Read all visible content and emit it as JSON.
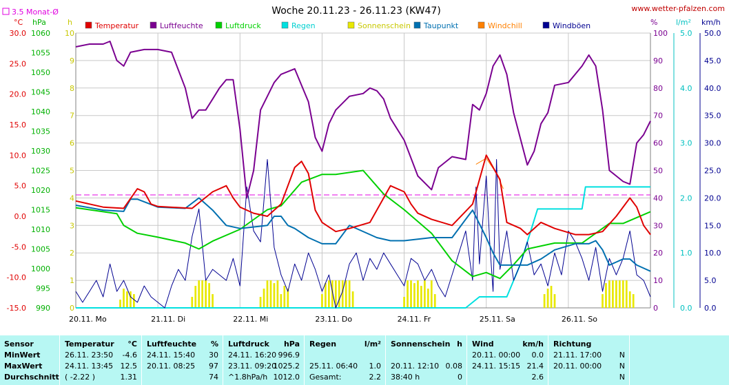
{
  "site_url": "www.wetter-pfalzen.com",
  "colors": {
    "temperature": "#e00000",
    "humidity": "#7a0090",
    "pressure": "#00d000",
    "rain": "#00e0e0",
    "sunshine": "#e8e800",
    "dewpoint": "#0070b0",
    "windchill": "#ff8000",
    "gusts": "#000090",
    "monthly_avg": "#e000e0",
    "grid": "#c8c8c8"
  },
  "chart_data": {
    "type": "line",
    "title": "Woche 20.11.23 - 26.11.23 (KW47)",
    "x_range_hours": [
      0,
      168
    ],
    "x_tick_labels": [
      "20.11. Mo",
      "21.11. Di",
      "22.11. Mi",
      "23.11. Do",
      "24.11. Fr",
      "25.11. Sa",
      "26.11. So"
    ],
    "legend": [
      "Temperatur",
      "Luftfeuchte",
      "Luftdruck",
      "Regen",
      "Sonnenschein",
      "Taupunkt",
      "Windchill",
      "Windböen"
    ],
    "monthly_avg_label": "3.5 Monat-Ø",
    "monthly_avg_value": 3.5,
    "axes": {
      "temperature": {
        "unit": "°C",
        "range": [
          -15,
          30
        ],
        "ticks": [
          "30.0",
          "25.0",
          "20.0",
          "15.0",
          "10.0",
          "5.0",
          "0.0",
          "-5.0",
          "-10.0",
          "-15.0"
        ]
      },
      "pressure": {
        "unit": "hPa",
        "range": [
          990,
          1060
        ],
        "ticks": [
          "1060",
          "1055",
          "1050",
          "1045",
          "1040",
          "1035",
          "1030",
          "1025",
          "1020",
          "1015",
          "1010",
          "1005",
          "1000",
          "995",
          "990"
        ]
      },
      "sunshine": {
        "unit": "h",
        "range": [
          0,
          10
        ],
        "ticks": [
          "10",
          "9",
          "8",
          "7",
          "6",
          "5",
          "4",
          "3",
          "2",
          "1",
          "0"
        ]
      },
      "humidity": {
        "unit": "%",
        "range": [
          0,
          100
        ],
        "ticks": [
          "100",
          "90",
          "80",
          "70",
          "60",
          "50",
          "40",
          "30",
          "20",
          "10",
          "0"
        ]
      },
      "rain": {
        "unit": "l/m²",
        "range": [
          0,
          5
        ],
        "ticks": [
          "5.0",
          "4.0",
          "3.0",
          "2.0",
          "1.0",
          "0.0"
        ]
      },
      "wind": {
        "unit": "km/h",
        "range": [
          0,
          50
        ],
        "ticks": [
          "50.0",
          "45.0",
          "40.0",
          "35.0",
          "30.0",
          "25.0",
          "20.0",
          "15.0",
          "10.0",
          "5.0",
          "0.0"
        ]
      }
    },
    "series": [
      {
        "name": "Temperatur",
        "axis": "temperature",
        "x": [
          0,
          8,
          14,
          18,
          20,
          22,
          24,
          34,
          40,
          44,
          46,
          48,
          52,
          56,
          60,
          64,
          66,
          68,
          70,
          72,
          76,
          80,
          86,
          92,
          96,
          98,
          100,
          104,
          110,
          116,
          120,
          124,
          126,
          128,
          130,
          132,
          134,
          136,
          140,
          146,
          150,
          154,
          158,
          162,
          164,
          166,
          168
        ],
        "y": [
          2.5,
          1.5,
          1.3,
          4.5,
          4.0,
          2.0,
          1.6,
          1.3,
          4.0,
          5.0,
          3.0,
          1.5,
          0.5,
          0.0,
          2.0,
          8.0,
          9.0,
          7.0,
          1.0,
          -1.0,
          -2.5,
          -2.0,
          -1.0,
          5.0,
          4.0,
          2.0,
          0.5,
          -0.5,
          -1.5,
          2.0,
          10.0,
          6.0,
          -1.0,
          -1.5,
          -2.0,
          -3.0,
          -2.0,
          -1.0,
          -2.0,
          -3.0,
          -3.0,
          -2.5,
          0.0,
          3.0,
          1.5,
          -1.5,
          -3.0
        ]
      },
      {
        "name": "Windchill",
        "axis": "temperature",
        "x": [
          117,
          120,
          123,
          125
        ],
        "y": [
          8.5,
          9.5,
          7.0,
          4.5
        ]
      },
      {
        "name": "Luftfeuchte",
        "axis": "humidity",
        "x": [
          0,
          4,
          8,
          10,
          12,
          14,
          16,
          20,
          24,
          28,
          32,
          34,
          36,
          38,
          40,
          42,
          44,
          46,
          48,
          50,
          52,
          54,
          56,
          58,
          60,
          64,
          68,
          70,
          72,
          74,
          76,
          80,
          84,
          86,
          88,
          90,
          92,
          96,
          100,
          104,
          106,
          110,
          114,
          116,
          118,
          120,
          122,
          124,
          126,
          128,
          132,
          134,
          136,
          138,
          140,
          144,
          148,
          150,
          152,
          154,
          156,
          158,
          160,
          162,
          164,
          166,
          168
        ],
        "y": [
          95,
          96,
          96,
          97,
          90,
          88,
          93,
          94,
          94,
          93,
          80,
          69,
          72,
          72,
          76,
          80,
          83,
          83,
          65,
          40,
          50,
          72,
          77,
          82,
          85,
          87,
          75,
          62,
          57,
          67,
          72,
          77,
          78,
          80,
          79,
          76,
          69,
          61,
          48,
          43,
          51,
          55,
          54,
          74,
          72,
          78,
          88,
          92,
          85,
          71,
          52,
          57,
          67,
          71,
          81,
          82,
          88,
          92,
          88,
          72,
          50,
          48,
          46,
          45,
          60,
          63,
          68
        ]
      },
      {
        "name": "Luftdruck",
        "axis": "pressure",
        "x": [
          0,
          8,
          12,
          14,
          18,
          24,
          32,
          36,
          40,
          48,
          56,
          60,
          66,
          72,
          76,
          84,
          90,
          96,
          104,
          110,
          116,
          120,
          124,
          128,
          132,
          140,
          148,
          152,
          156,
          160,
          164,
          168
        ],
        "y": [
          1015.5,
          1014.5,
          1014.0,
          1011.0,
          1009.0,
          1008.0,
          1006.5,
          1005.0,
          1007.0,
          1010.0,
          1015.0,
          1016.0,
          1022.0,
          1024.0,
          1024.0,
          1025.0,
          1019.0,
          1015.0,
          1009.0,
          1002.0,
          998.0,
          999.0,
          997.5,
          1001.0,
          1005.0,
          1006.5,
          1006.5,
          1009.0,
          1011.5,
          1011.5,
          1013.0,
          1014.5
        ]
      },
      {
        "name": "Taupunkt",
        "axis": "temperature",
        "x": [
          0,
          8,
          14,
          16,
          18,
          24,
          32,
          36,
          40,
          44,
          48,
          56,
          58,
          60,
          62,
          64,
          68,
          72,
          76,
          80,
          88,
          92,
          96,
          104,
          110,
          114,
          116,
          120,
          122,
          124,
          126,
          128,
          132,
          136,
          140,
          146,
          150,
          152,
          154,
          156,
          158,
          160,
          162,
          164,
          166,
          168
        ],
        "y": [
          1.8,
          1.0,
          0.8,
          2.8,
          2.8,
          1.5,
          1.3,
          3.0,
          1.0,
          -1.5,
          -2.0,
          -1.5,
          0.0,
          0.0,
          -1.5,
          -2.0,
          -3.5,
          -4.5,
          -4.5,
          -1.5,
          -3.5,
          -4.0,
          -4.0,
          -3.5,
          -3.5,
          -0.5,
          1.0,
          -3.5,
          -6.0,
          -8.0,
          -8.0,
          -8.0,
          -8.0,
          -7.0,
          -5.5,
          -4.5,
          -4.5,
          -4.0,
          -5.5,
          -8.0,
          -7.5,
          -7.0,
          -7.0,
          -8.0,
          -8.5,
          -9.0
        ]
      },
      {
        "name": "Regen",
        "axis": "rain",
        "x": [
          0,
          114,
          118,
          120,
          121,
          126,
          130,
          135,
          136,
          137,
          148,
          149,
          168
        ],
        "y": [
          0,
          0,
          0.2,
          0.2,
          0.2,
          0.2,
          0.8,
          1.8,
          1.8,
          1.8,
          1.8,
          2.2,
          2.2
        ]
      },
      {
        "name": "Windböen",
        "axis": "wind",
        "x": [
          0,
          2,
          4,
          6,
          8,
          10,
          12,
          14,
          16,
          18,
          20,
          22,
          24,
          26,
          28,
          30,
          32,
          34,
          36,
          38,
          40,
          42,
          44,
          46,
          48,
          50,
          52,
          54,
          56,
          58,
          60,
          62,
          64,
          66,
          68,
          70,
          72,
          74,
          76,
          78,
          80,
          82,
          84,
          86,
          88,
          90,
          92,
          94,
          96,
          98,
          100,
          102,
          104,
          106,
          108,
          110,
          112,
          114,
          116,
          117,
          118,
          120,
          121,
          122,
          123,
          124,
          126,
          128,
          130,
          132,
          134,
          136,
          138,
          140,
          142,
          144,
          146,
          148,
          150,
          152,
          154,
          156,
          158,
          160,
          162,
          164,
          166,
          168
        ],
        "y": [
          3,
          1,
          3,
          5,
          2,
          8,
          3,
          5,
          2,
          1,
          4,
          2,
          1,
          0,
          4,
          7,
          5,
          13,
          18,
          5,
          7,
          6,
          5,
          9,
          4,
          22,
          14,
          12,
          27,
          11,
          6,
          3,
          8,
          5,
          10,
          7,
          3,
          6,
          0,
          3,
          8,
          10,
          5,
          9,
          7,
          10,
          8,
          6,
          4,
          9,
          8,
          5,
          7,
          4,
          2,
          6,
          10,
          14,
          5,
          22,
          8,
          24,
          12,
          3,
          27,
          7,
          14,
          5,
          8,
          12,
          6,
          8,
          4,
          10,
          6,
          14,
          12,
          9,
          5,
          11,
          3,
          9,
          6,
          9,
          14,
          6,
          5,
          2
        ]
      },
      {
        "name": "Sonnenschein",
        "axis": "sunshine",
        "type": "bar",
        "x": [
          13,
          14,
          15,
          16,
          17,
          34,
          35,
          36,
          37,
          38,
          39,
          40,
          54,
          55,
          56,
          57,
          58,
          59,
          60,
          61,
          62,
          72,
          73,
          74,
          75,
          76,
          77,
          78,
          79,
          80,
          81,
          96,
          97,
          98,
          99,
          100,
          101,
          102,
          103,
          104,
          105,
          137,
          138,
          139,
          140,
          154,
          155,
          156,
          157,
          158,
          159,
          160,
          161,
          162,
          163
        ],
        "y": [
          0.3,
          0.7,
          0.6,
          0.6,
          0.5,
          0.4,
          0.8,
          1.0,
          1.0,
          1.0,
          0.9,
          0.5,
          0.4,
          0.7,
          1.0,
          1.0,
          0.9,
          1.0,
          0.5,
          0.8,
          0.7,
          0.5,
          0.9,
          1.0,
          1.0,
          1.0,
          1.0,
          1.0,
          1.0,
          1.0,
          0.6,
          0.4,
          1.0,
          1.0,
          0.9,
          1.0,
          0.8,
          1.0,
          0.7,
          1.0,
          0.5,
          0.5,
          0.7,
          0.8,
          0.5,
          0.5,
          0.9,
          1.0,
          1.0,
          1.0,
          1.0,
          1.0,
          1.0,
          0.6,
          0.5
        ]
      }
    ]
  },
  "table": {
    "headers": [
      {
        "label": "Sensor",
        "unit": ""
      },
      {
        "label": "Temperatur",
        "unit": "°C"
      },
      {
        "label": "Luftfeuchte",
        "unit": "%"
      },
      {
        "label": "Luftdruck",
        "unit": "hPa"
      },
      {
        "label": "Regen",
        "unit": "l/m²"
      },
      {
        "label": "Sonnenschein",
        "unit": "h"
      },
      {
        "label": "Wind",
        "unit": "km/h"
      },
      {
        "label": "Richtung",
        "unit": ""
      }
    ],
    "rows": [
      {
        "label": "MinWert",
        "cells": [
          [
            "26.11.  23:50",
            "-4.6"
          ],
          [
            "24.11.  15:40",
            "30"
          ],
          [
            "24.11.  16:20",
            "996.9"
          ],
          [
            "",
            ""
          ],
          [
            "",
            ""
          ],
          [
            "20.11.  00:00",
            "0.0"
          ],
          [
            "21.11.  17:00",
            "N"
          ]
        ]
      },
      {
        "label": "MaxWert",
        "cells": [
          [
            "24.11.  13:45",
            "12.5"
          ],
          [
            "20.11.  08:25",
            "97"
          ],
          [
            "23.11.  09:20",
            "1025.2"
          ],
          [
            "25.11.  06:40",
            "1.0"
          ],
          [
            "20.11.  12:10",
            "0.08"
          ],
          [
            "24.11.  15:15",
            "21.4"
          ],
          [
            "20.11.  00:00",
            "N"
          ]
        ]
      },
      {
        "label": "Durchschnitt",
        "cells": [
          [
            "( -2.22 )",
            "1.31"
          ],
          [
            "",
            "74"
          ],
          [
            "^1.8hPa/h",
            "1012.0"
          ],
          [
            "Gesamt:",
            "2.2"
          ],
          [
            "38:40 h",
            "0"
          ],
          [
            "",
            "2.6"
          ],
          [
            "",
            "N"
          ]
        ]
      }
    ]
  }
}
